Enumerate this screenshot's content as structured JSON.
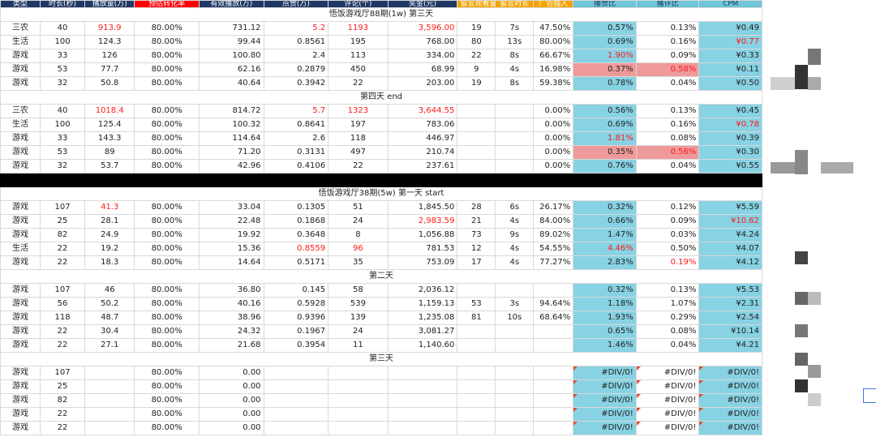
{
  "headers": [
    "类型",
    "时长(秒)",
    "播放量(万)",
    "预估转化率",
    "有效播放(万)",
    "点赞(万)",
    "评论(个)",
    "奖金(元)",
    "留言观看量",
    "留言时长",
    "广告插入",
    "播赞比",
    "播评比",
    "CPM"
  ],
  "sections": [
    {
      "title": "悟饭游戏厅88期(1w) 第三天",
      "rows": [
        {
          "c": [
            "三农",
            "40",
            "913.9",
            "80.00%",
            "731.12",
            "5.2",
            "1193",
            "3,596.00",
            "19",
            "7s",
            "47.50%",
            "0.57%",
            "0.13%",
            "¥0.49"
          ],
          "red": [
            2,
            5,
            6,
            7
          ],
          "blue": [
            11,
            13
          ],
          "pink": []
        },
        {
          "c": [
            "生活",
            "100",
            "124.3",
            "80.00%",
            "99.44",
            "0.8561",
            "195",
            "768.00",
            "80",
            "13s",
            "80.00%",
            "0.69%",
            "0.16%",
            "¥0.77"
          ],
          "red": [
            13
          ],
          "blue": [
            11,
            13
          ],
          "pink": []
        },
        {
          "c": [
            "游戏",
            "33",
            "126",
            "80.00%",
            "100.80",
            "2.4",
            "113",
            "334.00",
            "22",
            "8s",
            "66.67%",
            "1.90%",
            "0.09%",
            "¥0.33"
          ],
          "red": [
            11
          ],
          "blue": [
            11,
            13
          ],
          "pink": []
        },
        {
          "c": [
            "游戏",
            "53",
            "77.7",
            "80.00%",
            "62.16",
            "0.2879",
            "450",
            "68.99",
            "9",
            "4s",
            "16.98%",
            "0.37%",
            "0.58%",
            "¥0.11"
          ],
          "red": [
            12
          ],
          "blue": [
            13
          ],
          "pink": [
            11,
            12
          ]
        },
        {
          "c": [
            "游戏",
            "32",
            "50.8",
            "80.00%",
            "40.64",
            "0.3942",
            "22",
            "203.00",
            "19",
            "8s",
            "59.38%",
            "0.78%",
            "0.04%",
            "¥0.50"
          ],
          "red": [],
          "blue": [
            11,
            13
          ],
          "pink": []
        }
      ]
    },
    {
      "title": "第四天 end",
      "rows": [
        {
          "c": [
            "三农",
            "40",
            "1018.4",
            "80.00%",
            "814.72",
            "5.7",
            "1323",
            "3,644.55",
            "",
            "",
            "0.00%",
            "0.56%",
            "0.13%",
            "¥0.45"
          ],
          "red": [
            2,
            5,
            6,
            7
          ],
          "blue": [
            11,
            13
          ],
          "pink": []
        },
        {
          "c": [
            "生活",
            "100",
            "125.4",
            "80.00%",
            "100.32",
            "0.8641",
            "197",
            "783.06",
            "",
            "",
            "0.00%",
            "0.69%",
            "0.16%",
            "¥0.78"
          ],
          "red": [
            13
          ],
          "blue": [
            11,
            13
          ],
          "pink": []
        },
        {
          "c": [
            "游戏",
            "33",
            "143.3",
            "80.00%",
            "114.64",
            "2.6",
            "118",
            "446.97",
            "",
            "",
            "0.00%",
            "1.81%",
            "0.08%",
            "¥0.39"
          ],
          "red": [
            11
          ],
          "blue": [
            11,
            13
          ],
          "pink": []
        },
        {
          "c": [
            "游戏",
            "53",
            "89",
            "80.00%",
            "71.20",
            "0.3131",
            "497",
            "210.74",
            "",
            "",
            "0.00%",
            "0.35%",
            "0.56%",
            "¥0.30"
          ],
          "red": [
            12
          ],
          "blue": [
            13
          ],
          "pink": [
            11,
            12
          ]
        },
        {
          "c": [
            "游戏",
            "32",
            "53.7",
            "80.00%",
            "42.96",
            "0.4106",
            "22",
            "237.61",
            "",
            "",
            "0.00%",
            "0.76%",
            "0.04%",
            "¥0.55"
          ],
          "red": [],
          "blue": [
            11,
            13
          ],
          "pink": []
        }
      ]
    },
    {
      "blackbar": true,
      "title": "悟饭游戏厅38期(5w) 第一天 start",
      "rows": [
        {
          "c": [
            "游戏",
            "107",
            "41.3",
            "80.00%",
            "33.04",
            "0.1305",
            "51",
            "1,845.50",
            "28",
            "6s",
            "26.17%",
            "0.32%",
            "0.12%",
            "¥5.59"
          ],
          "red": [
            2
          ],
          "blue": [
            11,
            13
          ],
          "pink": []
        },
        {
          "c": [
            "游戏",
            "25",
            "28.1",
            "80.00%",
            "22.48",
            "0.1868",
            "24",
            "2,983.59",
            "21",
            "4s",
            "84.00%",
            "0.66%",
            "0.09%",
            "¥10.62"
          ],
          "red": [
            7,
            13
          ],
          "blue": [
            11,
            13
          ],
          "pink": []
        },
        {
          "c": [
            "游戏",
            "82",
            "24.9",
            "80.00%",
            "19.92",
            "0.3648",
            "8",
            "1,056.88",
            "73",
            "9s",
            "89.02%",
            "1.47%",
            "0.03%",
            "¥4.24"
          ],
          "red": [],
          "blue": [
            11,
            13
          ],
          "pink": []
        },
        {
          "c": [
            "生活",
            "22",
            "19.2",
            "80.00%",
            "15.36",
            "0.8559",
            "96",
            "781.53",
            "12",
            "4s",
            "54.55%",
            "4.46%",
            "0.50%",
            "¥4.07"
          ],
          "red": [
            5,
            6,
            11
          ],
          "blue": [
            11,
            13
          ],
          "pink": []
        },
        {
          "c": [
            "游戏",
            "22",
            "18.3",
            "80.00%",
            "14.64",
            "0.5171",
            "35",
            "753.09",
            "17",
            "4s",
            "77.27%",
            "2.83%",
            "0.19%",
            "¥4.12"
          ],
          "red": [
            12
          ],
          "blue": [
            11,
            13
          ],
          "pink": []
        }
      ]
    },
    {
      "title": "第二天",
      "rows": [
        {
          "c": [
            "游戏",
            "107",
            "46",
            "80.00%",
            "36.80",
            "0.145",
            "58",
            "2,036.12",
            "",
            "",
            "",
            "0.32%",
            "0.13%",
            "¥5.53"
          ],
          "red": [],
          "blue": [
            11,
            13
          ],
          "pink": []
        },
        {
          "c": [
            "游戏",
            "56",
            "50.2",
            "80.00%",
            "40.16",
            "0.5928",
            "539",
            "1,159.13",
            "53",
            "3s",
            "94.64%",
            "1.18%",
            "1.07%",
            "¥2.31"
          ],
          "red": [],
          "blue": [
            11,
            13
          ],
          "pink": []
        },
        {
          "c": [
            "游戏",
            "118",
            "48.7",
            "80.00%",
            "38.96",
            "0.9396",
            "139",
            "1,235.08",
            "81",
            "10s",
            "68.64%",
            "1.93%",
            "0.29%",
            "¥2.54"
          ],
          "red": [],
          "blue": [
            11,
            13
          ],
          "pink": []
        },
        {
          "c": [
            "游戏",
            "22",
            "30.4",
            "80.00%",
            "24.32",
            "0.1967",
            "24",
            "3,081.27",
            "",
            "",
            "",
            "0.65%",
            "0.08%",
            "¥10.14"
          ],
          "red": [],
          "blue": [
            11,
            13
          ],
          "pink": []
        },
        {
          "c": [
            "游戏",
            "22",
            "27.1",
            "80.00%",
            "21.68",
            "0.3954",
            "11",
            "1,140.60",
            "",
            "",
            "",
            "1.46%",
            "0.04%",
            "¥4.21"
          ],
          "red": [],
          "blue": [
            11,
            13
          ],
          "pink": []
        }
      ]
    },
    {
      "title": "第三天",
      "rows": [
        {
          "c": [
            "游戏",
            "107",
            "",
            "80.00%",
            "0.00",
            "",
            "",
            "",
            "",
            "",
            "",
            "#DIV/0!",
            "#DIV/0!",
            "#DIV/0!"
          ],
          "red": [],
          "blue": [
            11,
            13
          ],
          "pink": [],
          "err": true
        },
        {
          "c": [
            "游戏",
            "25",
            "",
            "80.00%",
            "0.00",
            "",
            "",
            "",
            "",
            "",
            "",
            "#DIV/0!",
            "#DIV/0!",
            "#DIV/0!"
          ],
          "red": [],
          "blue": [
            11,
            13
          ],
          "pink": [],
          "err": true
        },
        {
          "c": [
            "游戏",
            "82",
            "",
            "80.00%",
            "0.00",
            "",
            "",
            "",
            "",
            "",
            "",
            "#DIV/0!",
            "#DIV/0!",
            "#DIV/0!"
          ],
          "red": [],
          "blue": [
            11,
            13
          ],
          "pink": [],
          "err": true
        },
        {
          "c": [
            "游戏",
            "22",
            "",
            "80.00%",
            "0.00",
            "",
            "",
            "",
            "",
            "",
            "",
            "#DIV/0!",
            "#DIV/0!",
            "#DIV/0!"
          ],
          "red": [],
          "blue": [
            11,
            13
          ],
          "pink": [],
          "err": true
        },
        {
          "c": [
            "游戏",
            "22",
            "",
            "80.00%",
            "0.00",
            "",
            "",
            "",
            "",
            "",
            "",
            "#DIV/0!",
            "#DIV/0!",
            "#DIV/0!"
          ],
          "red": [],
          "blue": [
            11,
            13
          ],
          "pink": [],
          "err": true
        }
      ]
    }
  ]
}
